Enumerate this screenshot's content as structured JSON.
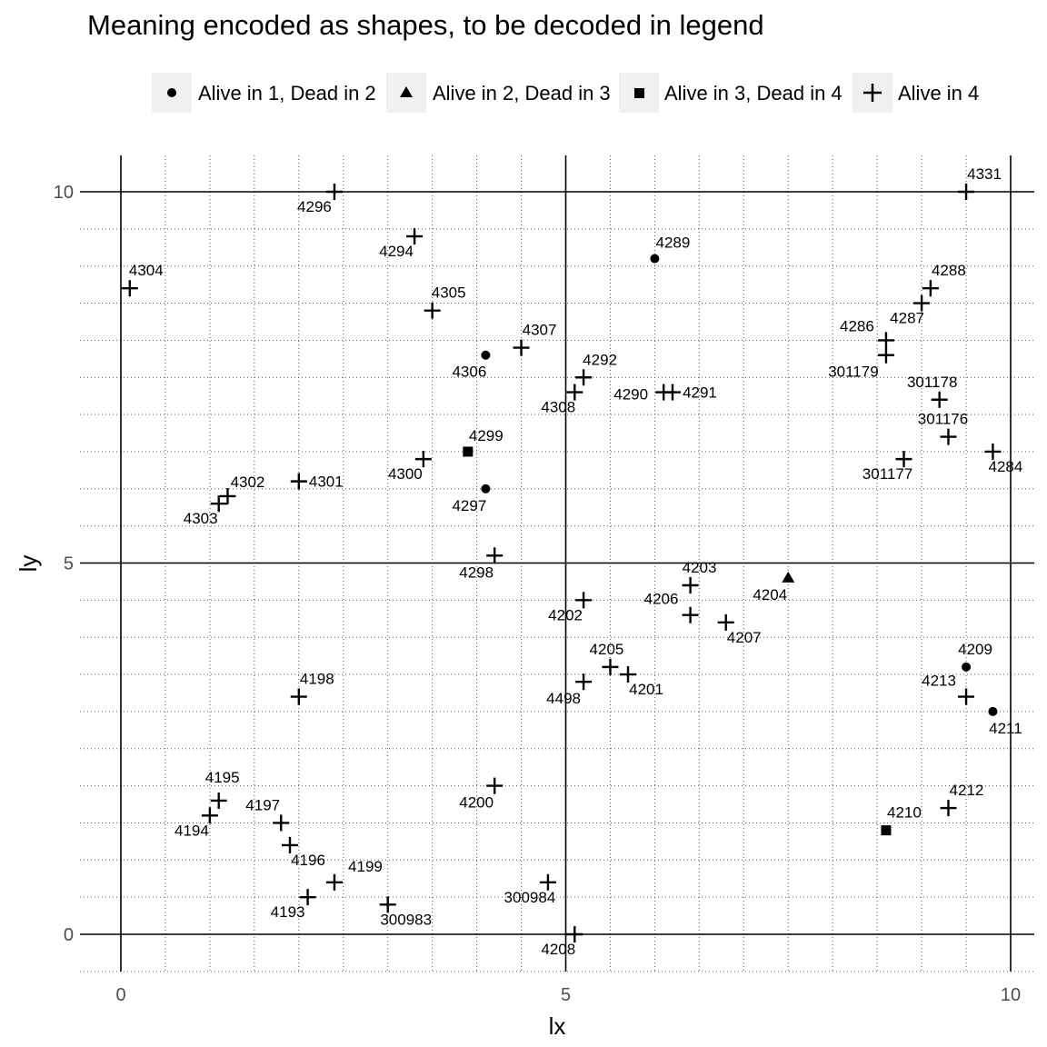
{
  "chart_data": {
    "type": "scatter",
    "title": "Meaning encoded as shapes, to be decoded in legend",
    "xlabel": "lx",
    "ylabel": "ly",
    "xlim": [
      -0.45,
      10.3
    ],
    "ylim": [
      -0.5,
      10.5
    ],
    "x_ticks": [
      0,
      5,
      10
    ],
    "y_ticks": [
      0,
      5,
      10
    ],
    "grid": "major solid, minor dotted",
    "legend_position": "top",
    "series": [
      {
        "name": "Alive in 1, Dead in 2",
        "shape": "circle",
        "color": "#000000",
        "points": [
          {
            "label": "4289",
            "x": 6.0,
            "y": 9.1
          },
          {
            "label": "4306",
            "x": 4.1,
            "y": 7.8
          },
          {
            "label": "4297",
            "x": 4.1,
            "y": 6.0
          },
          {
            "label": "4209",
            "x": 9.5,
            "y": 3.6
          },
          {
            "label": "4211",
            "x": 9.8,
            "y": 3.0
          }
        ]
      },
      {
        "name": "Alive in 2, Dead in 3",
        "shape": "triangle",
        "color": "#000000",
        "points": [
          {
            "label": "4204",
            "x": 7.5,
            "y": 4.8
          }
        ]
      },
      {
        "name": "Alive in 3, Dead in 4",
        "shape": "square",
        "color": "#000000",
        "points": [
          {
            "label": "4299",
            "x": 3.9,
            "y": 6.5
          },
          {
            "label": "4210",
            "x": 8.6,
            "y": 1.4
          }
        ]
      },
      {
        "name": "Alive in 4",
        "shape": "plus",
        "color": "#000000",
        "points": [
          {
            "label": "4296",
            "x": 2.4,
            "y": 10.0
          },
          {
            "label": "4331",
            "x": 9.5,
            "y": 10.0
          },
          {
            "label": "4294",
            "x": 3.3,
            "y": 9.4
          },
          {
            "label": "4304",
            "x": 0.1,
            "y": 8.7
          },
          {
            "label": "4305",
            "x": 3.5,
            "y": 8.4
          },
          {
            "label": "4288",
            "x": 9.1,
            "y": 8.7
          },
          {
            "label": "4287",
            "x": 9.0,
            "y": 8.5
          },
          {
            "label": "4286",
            "x": 8.6,
            "y": 8.0
          },
          {
            "label": "301179",
            "x": 8.6,
            "y": 7.8
          },
          {
            "label": "4307",
            "x": 4.5,
            "y": 7.9
          },
          {
            "label": "4292",
            "x": 5.2,
            "y": 7.5
          },
          {
            "label": "4308",
            "x": 5.1,
            "y": 7.3
          },
          {
            "label": "4290",
            "x": 6.1,
            "y": 7.3
          },
          {
            "label": "4291",
            "x": 6.2,
            "y": 7.3
          },
          {
            "label": "301178",
            "x": 9.2,
            "y": 7.2
          },
          {
            "label": "301176",
            "x": 9.3,
            "y": 6.7
          },
          {
            "label": "4284",
            "x": 9.8,
            "y": 6.5
          },
          {
            "label": "301177",
            "x": 8.8,
            "y": 6.4
          },
          {
            "label": "4300",
            "x": 3.4,
            "y": 6.4
          },
          {
            "label": "4301",
            "x": 2.0,
            "y": 6.1
          },
          {
            "label": "4302",
            "x": 1.2,
            "y": 5.9
          },
          {
            "label": "4303",
            "x": 1.1,
            "y": 5.8
          },
          {
            "label": "4298",
            "x": 4.2,
            "y": 5.1
          },
          {
            "label": "4203",
            "x": 6.4,
            "y": 4.7
          },
          {
            "label": "4202",
            "x": 5.2,
            "y": 4.5
          },
          {
            "label": "4206",
            "x": 6.4,
            "y": 4.3
          },
          {
            "label": "4207",
            "x": 6.8,
            "y": 4.2
          },
          {
            "label": "4205",
            "x": 5.5,
            "y": 3.6
          },
          {
            "label": "4201",
            "x": 5.7,
            "y": 3.5
          },
          {
            "label": "4498",
            "x": 5.2,
            "y": 3.4
          },
          {
            "label": "4198",
            "x": 2.0,
            "y": 3.2
          },
          {
            "label": "4213",
            "x": 9.5,
            "y": 3.2
          },
          {
            "label": "4200",
            "x": 4.2,
            "y": 2.0
          },
          {
            "label": "4195",
            "x": 1.1,
            "y": 1.8
          },
          {
            "label": "4194",
            "x": 1.0,
            "y": 1.6
          },
          {
            "label": "4197",
            "x": 1.8,
            "y": 1.5
          },
          {
            "label": "4196",
            "x": 1.9,
            "y": 1.2
          },
          {
            "label": "4212",
            "x": 9.3,
            "y": 1.7
          },
          {
            "label": "4199",
            "x": 2.4,
            "y": 0.7
          },
          {
            "label": "4193",
            "x": 2.1,
            "y": 0.5
          },
          {
            "label": "300983",
            "x": 3.0,
            "y": 0.4
          },
          {
            "label": "300984",
            "x": 4.8,
            "y": 0.7
          },
          {
            "label": "4208",
            "x": 5.1,
            "y": 0.0
          }
        ]
      }
    ]
  }
}
